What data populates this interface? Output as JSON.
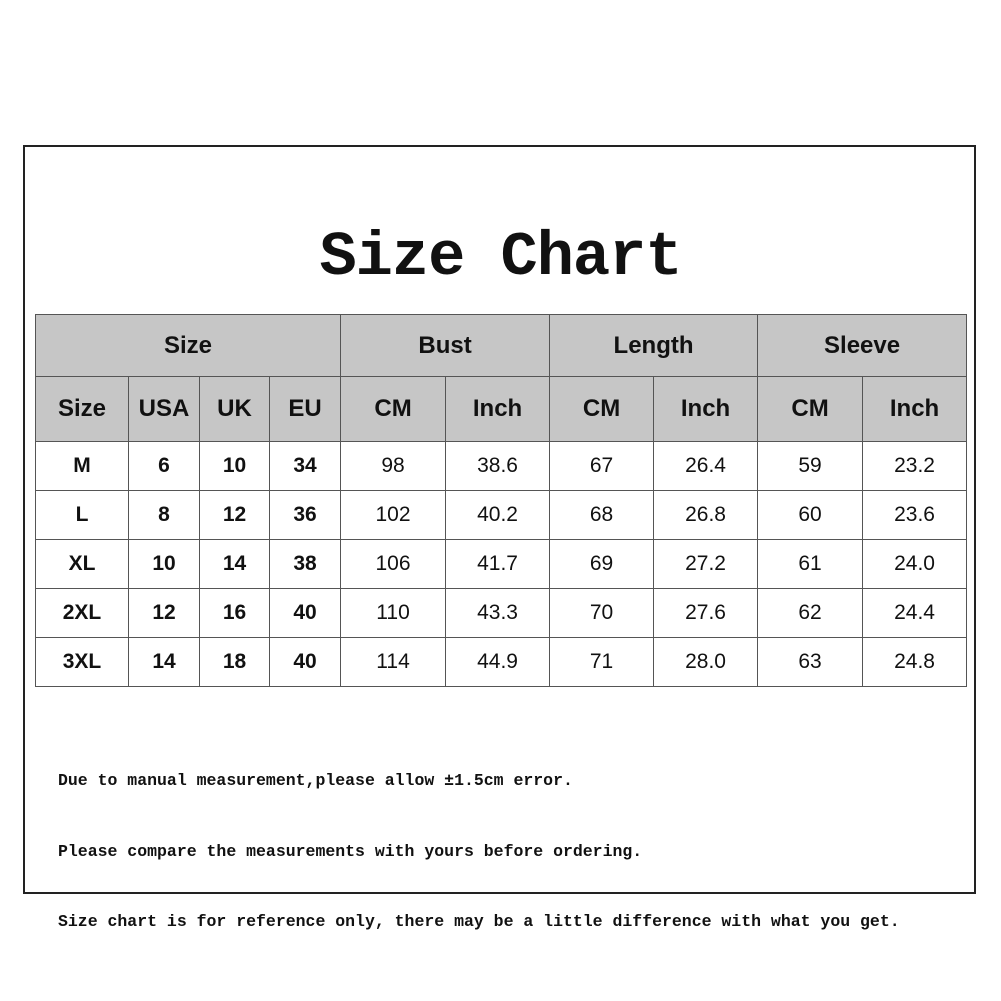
{
  "title": "Size Chart",
  "table": {
    "group_headers": [
      "Size",
      "Bust",
      "Length",
      "Sleeve"
    ],
    "sub_headers": [
      "Size",
      "USA",
      "UK",
      "EU",
      "CM",
      "Inch",
      "CM",
      "Inch",
      "CM",
      "Inch"
    ],
    "rows": [
      [
        "M",
        "6",
        "10",
        "34",
        "98",
        "38.6",
        "67",
        "26.4",
        "59",
        "23.2"
      ],
      [
        "L",
        "8",
        "12",
        "36",
        "102",
        "40.2",
        "68",
        "26.8",
        "60",
        "23.6"
      ],
      [
        "XL",
        "10",
        "14",
        "38",
        "106",
        "41.7",
        "69",
        "27.2",
        "61",
        "24.0"
      ],
      [
        "2XL",
        "12",
        "16",
        "40",
        "110",
        "43.3",
        "70",
        "27.6",
        "62",
        "24.4"
      ],
      [
        "3XL",
        "14",
        "18",
        "40",
        "114",
        "44.9",
        "71",
        "28.0",
        "63",
        "24.8"
      ]
    ]
  },
  "notes": [
    "Due to manual measurement,please allow ±1.5cm error.",
    "Please compare the measurements with yours before ordering.",
    "Size chart is for reference only, there may be a little difference with what you get."
  ],
  "colors": {
    "header_bg": "#c6c6c6",
    "border": "#555555"
  }
}
